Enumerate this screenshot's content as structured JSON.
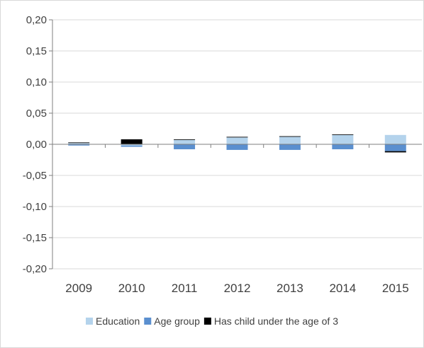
{
  "chart_data": {
    "type": "bar",
    "stacked": true,
    "categories": [
      "2009",
      "2010",
      "2011",
      "2012",
      "2013",
      "2014",
      "2015"
    ],
    "series": [
      {
        "name": "Education",
        "color": "#b4d3ec",
        "values": [
          0.002,
          -0.002,
          0.007,
          0.011,
          0.012,
          0.015,
          0.015
        ]
      },
      {
        "name": "Age group",
        "color": "#5a8fcf",
        "values": [
          -0.002,
          -0.002,
          -0.008,
          -0.009,
          -0.009,
          -0.008,
          -0.011
        ]
      },
      {
        "name": "Has child under the age of 3",
        "color": "#000000",
        "values": [
          0.001,
          0.008,
          0.001,
          0.001,
          0.001,
          0.001,
          -0.002
        ]
      }
    ],
    "y_ticks": [
      "0,20",
      "0,15",
      "0,10",
      "0,05",
      "0,00",
      "-0,05",
      "-0,10",
      "-0,15",
      "-0,20"
    ],
    "ylim": [
      -0.2,
      0.2
    ],
    "y_step": 0.05,
    "grid": true,
    "legend_position": "bottom",
    "title": "",
    "xlabel": "",
    "ylabel": ""
  }
}
